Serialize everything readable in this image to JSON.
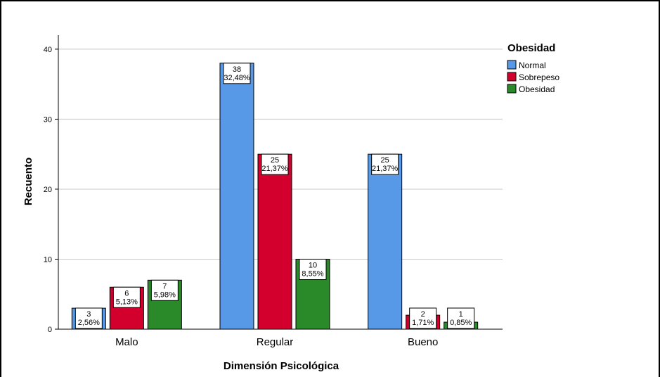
{
  "chart_data": {
    "type": "bar",
    "xlabel": "Dimensión Psicológica",
    "ylabel": "Recuento",
    "ylim": [
      0,
      42
    ],
    "yticks": [
      0,
      10,
      20,
      30,
      40
    ],
    "grid": true,
    "legend_placement": "top-right",
    "legend_title": "Obesidad",
    "categories": [
      "Malo",
      "Regular",
      "Bueno"
    ],
    "series": [
      {
        "name": "Normal",
        "color": "#5799e6",
        "values": [
          3,
          38,
          25
        ],
        "labels": [
          "3",
          "38",
          "25"
        ],
        "percents": [
          "2,56%",
          "32,48%",
          "21,37%"
        ]
      },
      {
        "name": "Sobrepeso",
        "color": "#d3002e",
        "values": [
          6,
          25,
          2
        ],
        "labels": [
          "6",
          "25",
          "2"
        ],
        "percents": [
          "5,13%",
          "21,37%",
          "1,71%"
        ]
      },
      {
        "name": "Obesidad",
        "color": "#2a8a2a",
        "values": [
          7,
          10,
          1
        ],
        "labels": [
          "7",
          "10",
          "1"
        ],
        "percents": [
          "5,98%",
          "8,55%",
          "0,85%"
        ]
      }
    ]
  }
}
